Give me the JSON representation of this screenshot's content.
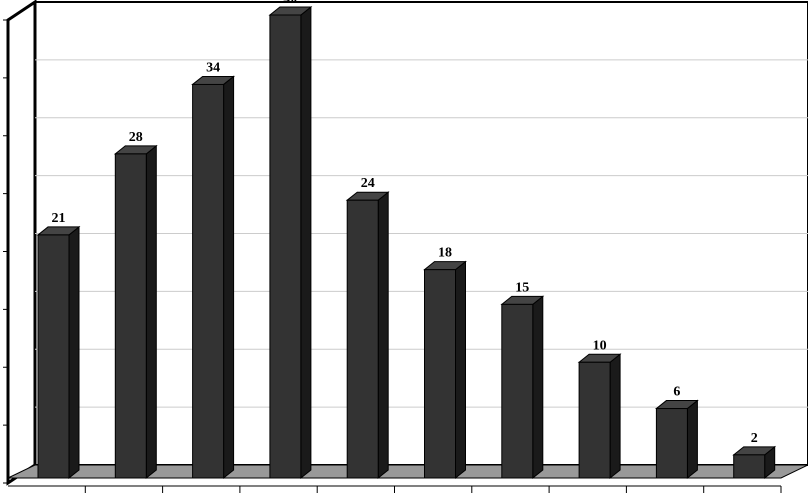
{
  "chart_data": {
    "type": "bar",
    "categories": [
      null,
      null,
      null,
      null,
      null,
      null,
      null,
      null,
      null,
      null
    ],
    "values": [
      21,
      28,
      34,
      40,
      24,
      18,
      15,
      10,
      6,
      2
    ],
    "color": "#333333",
    "ylim": [
      0,
      40
    ],
    "yticks": [
      0,
      5,
      10,
      15,
      20,
      25,
      30,
      35,
      40
    ],
    "grid": true
  }
}
